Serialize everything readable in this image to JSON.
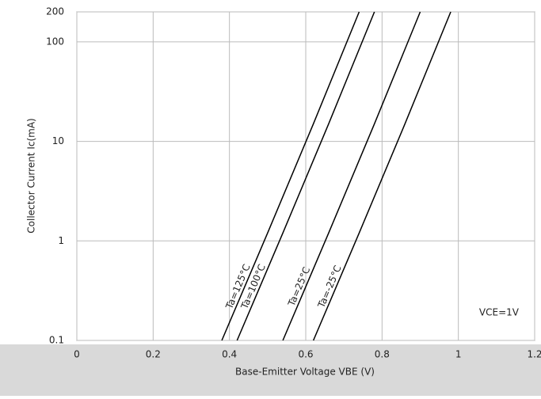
{
  "chart_data": {
    "type": "line",
    "x_label": "Base-Emitter Voltage  VBE (V)",
    "y_label": "Collector Current  Ic(mA)",
    "annotation": "VCE=1V",
    "log_y": true,
    "grid": true,
    "xlim": [
      0,
      1.2
    ],
    "xticks": [
      0,
      0.2,
      0.4,
      0.6,
      0.8,
      1,
      1.2
    ],
    "ylim": [
      0.1,
      200
    ],
    "yticks": [
      0.1,
      1,
      10,
      100,
      200
    ],
    "series": [
      {
        "name": "Ta=125°C",
        "color": "#000000",
        "x": [
          0.38,
          0.5,
          0.62,
          0.74
        ],
        "values": [
          0.1,
          1.2,
          15,
          200
        ]
      },
      {
        "name": "Ta=100°C",
        "color": "#000000",
        "x": [
          0.42,
          0.54,
          0.66,
          0.78
        ],
        "values": [
          0.1,
          1.2,
          15,
          200
        ]
      },
      {
        "name": "Ta=25°C",
        "color": "#000000",
        "x": [
          0.54,
          0.66,
          0.78,
          0.9
        ],
        "values": [
          0.1,
          1.2,
          15,
          200
        ]
      },
      {
        "name": "Ta=-25°C",
        "color": "#000000",
        "x": [
          0.62,
          0.74,
          0.86,
          0.98
        ],
        "values": [
          0.1,
          1.2,
          15,
          200
        ]
      }
    ]
  }
}
